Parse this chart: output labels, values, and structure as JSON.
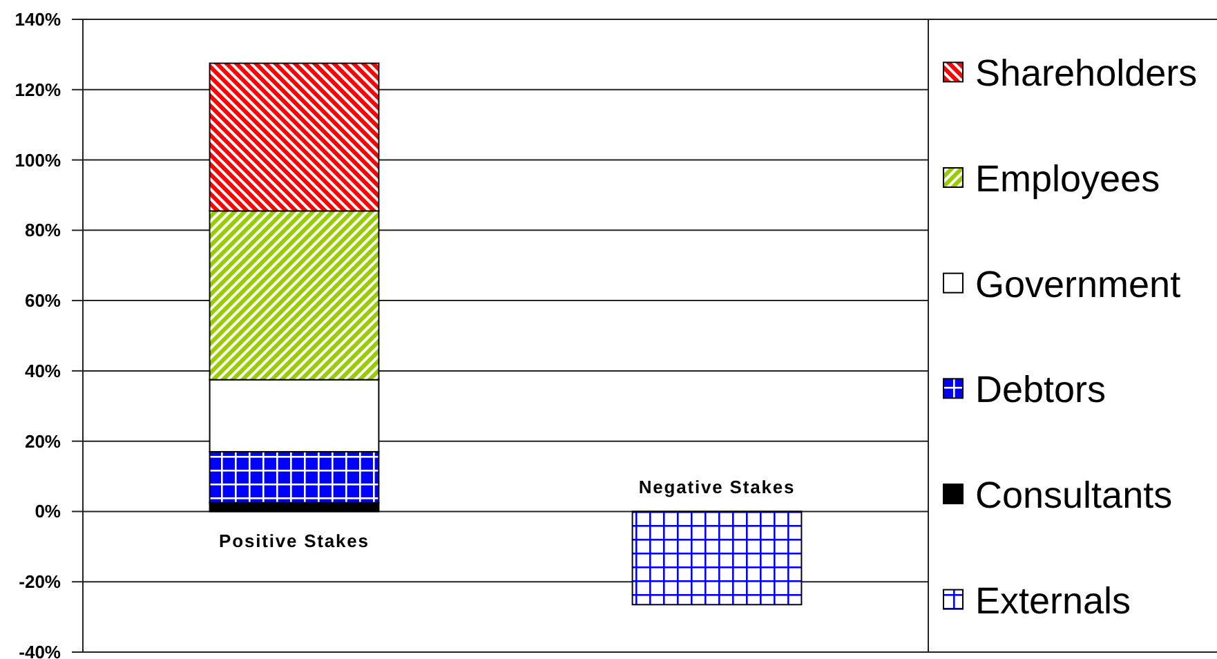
{
  "chart_data": {
    "type": "bar",
    "stacked": true,
    "categories": [
      "Positive Stakes",
      "Negative Stakes"
    ],
    "series": [
      {
        "name": "Externals",
        "color": "#0000ff",
        "values": [
          null,
          -26.5
        ]
      },
      {
        "name": "Consultants",
        "color": "#000000",
        "values": [
          2.5,
          null
        ]
      },
      {
        "name": "Debtors",
        "color": "#0000ff",
        "values": [
          14.5,
          null
        ]
      },
      {
        "name": "Government",
        "color": "#ffffff",
        "values": [
          20.5,
          null
        ]
      },
      {
        "name": "Employees",
        "color": "#99cc00",
        "values": [
          48,
          null
        ]
      },
      {
        "name": "Shareholders",
        "color": "#ff0000",
        "values": [
          42,
          null
        ]
      }
    ],
    "ylim": [
      -40,
      140
    ],
    "yticks": [
      {
        "value": -40,
        "label": "-40%"
      },
      {
        "value": -20,
        "label": "-20%"
      },
      {
        "value": 0,
        "label": "0%"
      },
      {
        "value": 20,
        "label": "20%"
      },
      {
        "value": 40,
        "label": "40%"
      },
      {
        "value": 60,
        "label": "60%"
      },
      {
        "value": 80,
        "label": "80%"
      },
      {
        "value": 100,
        "label": "100%"
      },
      {
        "value": 120,
        "label": "120%"
      },
      {
        "value": 140,
        "label": "140%"
      }
    ],
    "grid": "y",
    "legend": "right"
  }
}
